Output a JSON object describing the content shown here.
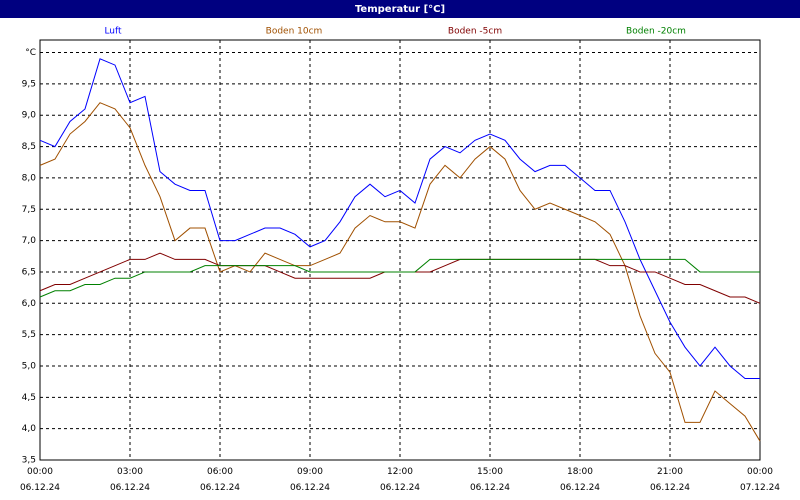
{
  "chart_data": {
    "type": "line",
    "title": "Temperatur [°C]",
    "x": [
      0,
      0.5,
      1,
      1.5,
      2,
      2.5,
      3,
      3.5,
      4,
      4.5,
      5,
      5.5,
      6,
      6.5,
      7,
      7.5,
      8,
      8.5,
      9,
      9.5,
      10,
      10.5,
      11,
      11.5,
      12,
      12.5,
      13,
      13.5,
      14,
      14.5,
      15,
      15.5,
      16,
      16.5,
      17,
      17.5,
      18,
      18.5,
      19,
      19.5,
      20,
      20.5,
      21,
      21.5,
      22,
      22.5,
      23,
      23.5,
      24
    ],
    "series": [
      {
        "name": "Luft",
        "color": "#0000ff",
        "values": [
          8.6,
          8.5,
          8.9,
          9.1,
          9.9,
          9.8,
          9.2,
          9.3,
          8.1,
          7.9,
          7.8,
          7.8,
          7.0,
          7.0,
          7.1,
          7.2,
          7.2,
          7.1,
          6.9,
          7.0,
          7.3,
          7.7,
          7.9,
          7.7,
          7.8,
          7.6,
          8.3,
          8.5,
          8.4,
          8.6,
          8.7,
          8.6,
          8.3,
          8.1,
          8.2,
          8.2,
          8.0,
          7.8,
          7.8,
          7.3,
          6.7,
          6.2,
          5.7,
          5.3,
          5.0,
          5.3,
          5.0,
          4.8,
          4.8
        ]
      },
      {
        "name": "Boden 10cm",
        "color": "#a05000",
        "values": [
          8.2,
          8.3,
          8.7,
          8.9,
          9.2,
          9.1,
          8.8,
          8.2,
          7.7,
          7.0,
          7.2,
          7.2,
          6.5,
          6.6,
          6.5,
          6.8,
          6.7,
          6.6,
          6.6,
          6.7,
          6.8,
          7.2,
          7.4,
          7.3,
          7.3,
          7.2,
          7.9,
          8.2,
          8.0,
          8.3,
          8.5,
          8.3,
          7.8,
          7.5,
          7.6,
          7.5,
          7.4,
          7.3,
          7.1,
          6.6,
          5.8,
          5.2,
          4.9,
          4.1,
          4.1,
          4.6,
          4.4,
          4.2,
          3.8
        ]
      },
      {
        "name": "Boden -5cm",
        "color": "#800000",
        "values": [
          6.2,
          6.3,
          6.3,
          6.4,
          6.5,
          6.6,
          6.7,
          6.7,
          6.8,
          6.7,
          6.7,
          6.7,
          6.6,
          6.6,
          6.6,
          6.6,
          6.5,
          6.4,
          6.4,
          6.4,
          6.4,
          6.4,
          6.4,
          6.5,
          6.5,
          6.5,
          6.5,
          6.6,
          6.7,
          6.7,
          6.7,
          6.7,
          6.7,
          6.7,
          6.7,
          6.7,
          6.7,
          6.7,
          6.6,
          6.6,
          6.5,
          6.5,
          6.4,
          6.3,
          6.3,
          6.2,
          6.1,
          6.1,
          6.0
        ]
      },
      {
        "name": "Boden -20cm",
        "color": "#008000",
        "values": [
          6.1,
          6.2,
          6.2,
          6.3,
          6.3,
          6.4,
          6.4,
          6.5,
          6.5,
          6.5,
          6.5,
          6.6,
          6.6,
          6.6,
          6.6,
          6.6,
          6.6,
          6.6,
          6.5,
          6.5,
          6.5,
          6.5,
          6.5,
          6.5,
          6.5,
          6.5,
          6.7,
          6.7,
          6.7,
          6.7,
          6.7,
          6.7,
          6.7,
          6.7,
          6.7,
          6.7,
          6.7,
          6.7,
          6.7,
          6.7,
          6.7,
          6.7,
          6.7,
          6.7,
          6.5,
          6.5,
          6.5,
          6.5,
          6.5
        ]
      }
    ],
    "xlim": [
      0,
      24
    ],
    "xticks": [
      {
        "value": 0,
        "label": "00:00\n06.12.24"
      },
      {
        "value": 3,
        "label": "03:00\n06.12.24"
      },
      {
        "value": 6,
        "label": "06:00\n06.12.24"
      },
      {
        "value": 9,
        "label": "09:00\n06.12.24"
      },
      {
        "value": 12,
        "label": "12:00\n06.12.24"
      },
      {
        "value": 15,
        "label": "15:00\n06.12.24"
      },
      {
        "value": 18,
        "label": "18:00\n06.12.24"
      },
      {
        "value": 21,
        "label": "21:00\n06.12.24"
      },
      {
        "value": 24,
        "label": "00:00\n07.12.24"
      }
    ],
    "ylim": [
      3.5,
      10.2
    ],
    "yticks": [
      {
        "value": 3.5,
        "label": "3,5"
      },
      {
        "value": 4,
        "label": "4,0"
      },
      {
        "value": 4.5,
        "label": "4,5"
      },
      {
        "value": 5,
        "label": "5,0"
      },
      {
        "value": 5.5,
        "label": "5,5"
      },
      {
        "value": 6,
        "label": "6,0"
      },
      {
        "value": 6.5,
        "label": "6,5"
      },
      {
        "value": 7,
        "label": "7,0"
      },
      {
        "value": 7.5,
        "label": "7,5"
      },
      {
        "value": 8,
        "label": "8,0"
      },
      {
        "value": 8.5,
        "label": "8,5"
      },
      {
        "value": 9,
        "label": "9,0"
      },
      {
        "value": 9.5,
        "label": "9,5"
      },
      {
        "value": 10,
        "label": "°C"
      }
    ],
    "grid": true
  }
}
